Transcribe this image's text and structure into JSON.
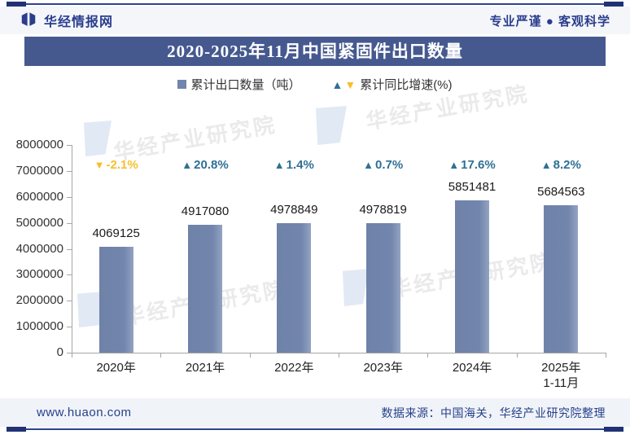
{
  "header": {
    "brand": "华经情报网",
    "slogan": "专业严谨 ● 客观科学"
  },
  "titlebar": {
    "text": "2020-2025年11月中国紧固件出口数量"
  },
  "legend": {
    "bars_label": "累计出口数量（吨）",
    "growth_label": "累计同比增速(%)",
    "up_marker": "▲",
    "down_marker": "▼"
  },
  "chart_data": {
    "type": "bar",
    "categories": [
      "2020年",
      "2021年",
      "2022年",
      "2023年",
      "2024年",
      "2025年1-11月"
    ],
    "categories_display": [
      [
        "2020年"
      ],
      [
        "2021年"
      ],
      [
        "2022年"
      ],
      [
        "2023年"
      ],
      [
        "2024年"
      ],
      [
        "2025年",
        "1-11月"
      ]
    ],
    "series": [
      {
        "name": "累计出口数量（吨）",
        "values": [
          4069125,
          4917080,
          4978849,
          4978819,
          5851481,
          5684563
        ]
      },
      {
        "name": "累计同比增速(%)",
        "values": [
          -2.1,
          20.8,
          1.4,
          0.7,
          17.6,
          8.2
        ]
      }
    ],
    "value_labels": [
      "4069125",
      "4917080",
      "4978849",
      "4978819",
      "5851481",
      "5684563"
    ],
    "growth_labels": [
      "-2.1%",
      "20.8%",
      "1.4%",
      "0.7%",
      "17.6%",
      "8.2%"
    ],
    "ylim": [
      0,
      8000000
    ],
    "yticks": [
      0,
      1000000,
      2000000,
      3000000,
      4000000,
      5000000,
      6000000,
      7000000,
      8000000
    ],
    "grid": "off",
    "legend_position": "top-center",
    "colors": {
      "bar": "#7285AC",
      "up": "#2F7094",
      "down": "#F7BE2C",
      "axis": "#A6A6A6"
    }
  },
  "watermark": {
    "text": "华经产业研究院"
  },
  "footer": {
    "site": "www.huaon.com",
    "source": "数据来源：中国海关，华经产业研究院整理"
  }
}
